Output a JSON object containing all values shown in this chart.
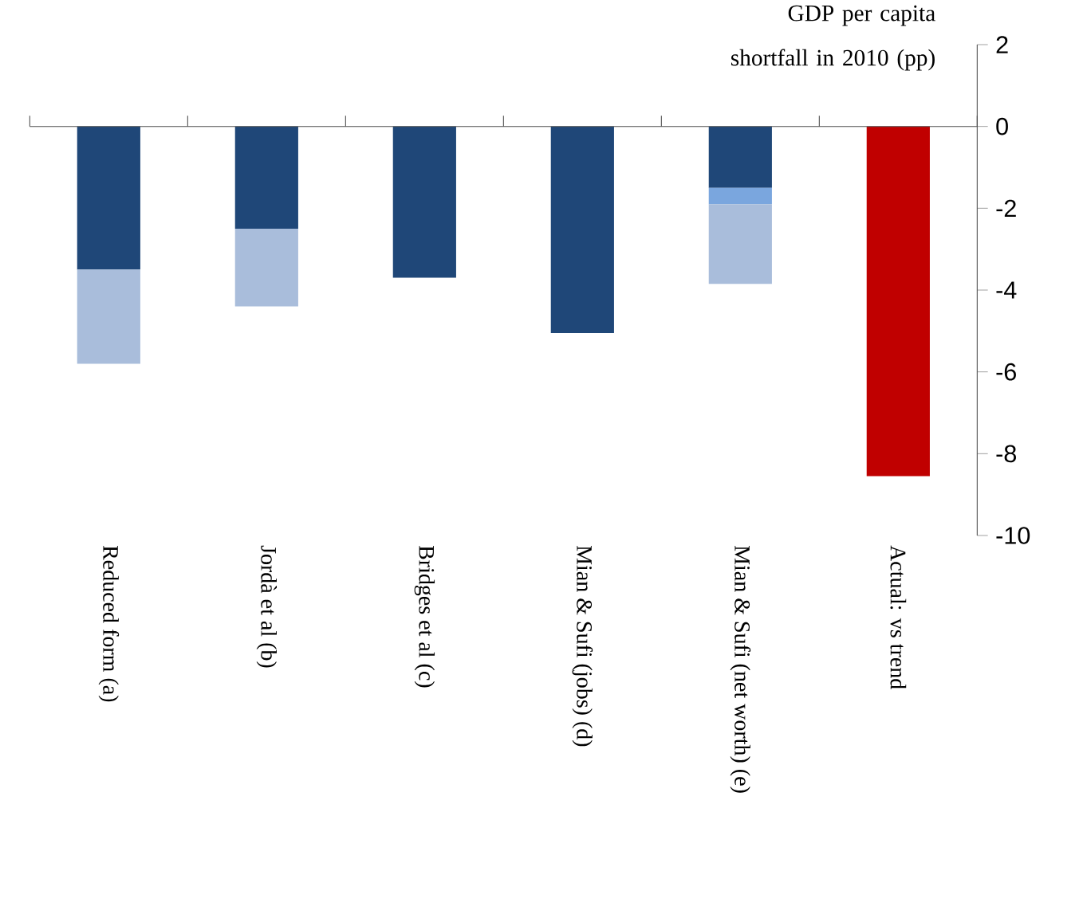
{
  "chart_data": {
    "type": "bar",
    "stacked": true,
    "ylabel": "GDP per capita shortfall in 2010 (pp)",
    "categories": [
      "Reduced form (a)",
      "Jordà et al (b)",
      "Bridges et al (c)",
      "Mian & Sufi (jobs) (d)",
      "Mian & Sufi (net worth) (e)",
      "Actual: vs trend"
    ],
    "series": [
      {
        "color": "#1f4778",
        "values": [
          -3.5,
          -2.5,
          -3.7,
          -5.05,
          -1.5,
          null
        ]
      },
      {
        "color": "#7aa6de",
        "values": [
          null,
          null,
          null,
          null,
          -0.4,
          null
        ]
      },
      {
        "color": "#a9bddb",
        "values": [
          -2.3,
          -1.9,
          null,
          null,
          -1.95,
          null
        ]
      },
      {
        "color": "#c00000",
        "values": [
          null,
          null,
          null,
          null,
          null,
          -8.55
        ]
      }
    ],
    "ylim": [
      -10,
      2
    ],
    "yticks": [
      2,
      0,
      -2,
      -4,
      -6,
      -8,
      -10
    ]
  }
}
